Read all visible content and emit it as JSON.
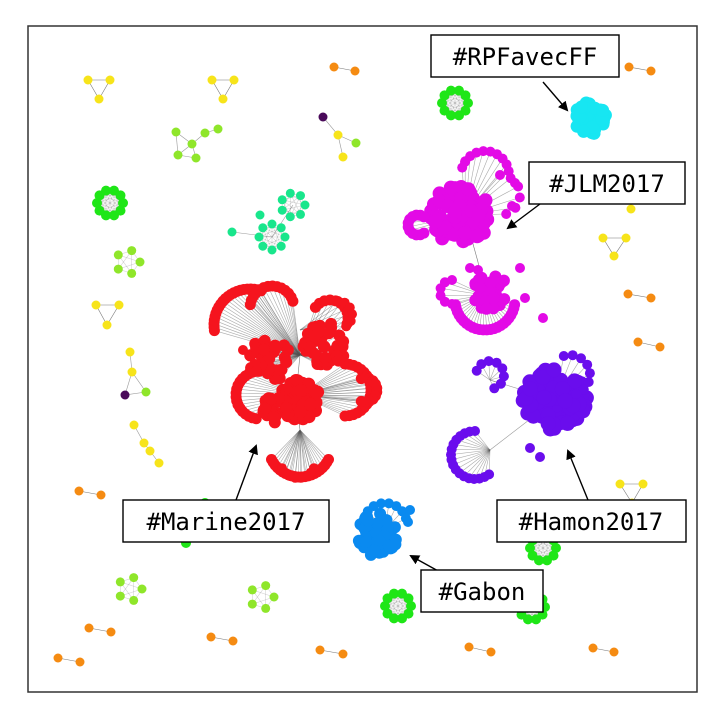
{
  "diagram": {
    "type": "hashtag-network-graph",
    "colors": {
      "marine": "#f5141e",
      "jlm": "#e30ae6",
      "hamon": "#6a0ded",
      "gabon": "#0a8af0",
      "rpfavec": "#17e6f2",
      "green": "#1fe617",
      "lime": "#8fe62a",
      "yellow": "#f7e41a",
      "orange": "#f58b12",
      "teal": "#19e68c",
      "purple": "#4a0a5a",
      "edge": "#555555"
    },
    "labels": [
      {
        "id": "rpfavec",
        "text": "#RPFavecFF",
        "target": "rpfavec"
      },
      {
        "id": "jlm",
        "text": "#JLM2017",
        "target": "jlm"
      },
      {
        "id": "marine",
        "text": "#Marine2017",
        "target": "marine"
      },
      {
        "id": "hamon",
        "text": "#Hamon2017",
        "target": "hamon"
      },
      {
        "id": "gabon",
        "text": "#Gabon",
        "target": "gabon"
      }
    ]
  }
}
